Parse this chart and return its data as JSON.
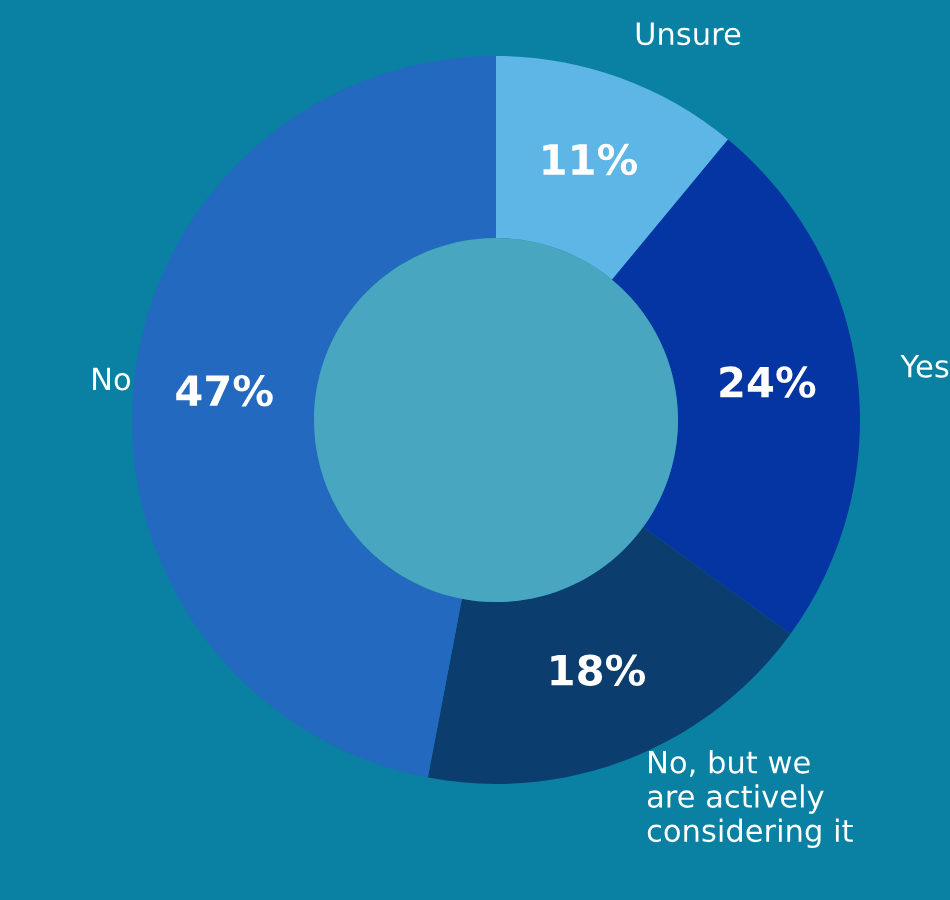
{
  "chart_data": {
    "type": "donut",
    "categories": [
      "Unsure",
      "Yes",
      "No, but we\nare actively\nconsidering it",
      "No"
    ],
    "values": [
      11,
      24,
      18,
      47
    ],
    "value_labels": [
      "11%",
      "24%",
      "18%",
      "47%"
    ],
    "colors": [
      "#5db6e6",
      "#0534a3",
      "#0b3e6e",
      "#2369bf"
    ],
    "legend": false
  }
}
